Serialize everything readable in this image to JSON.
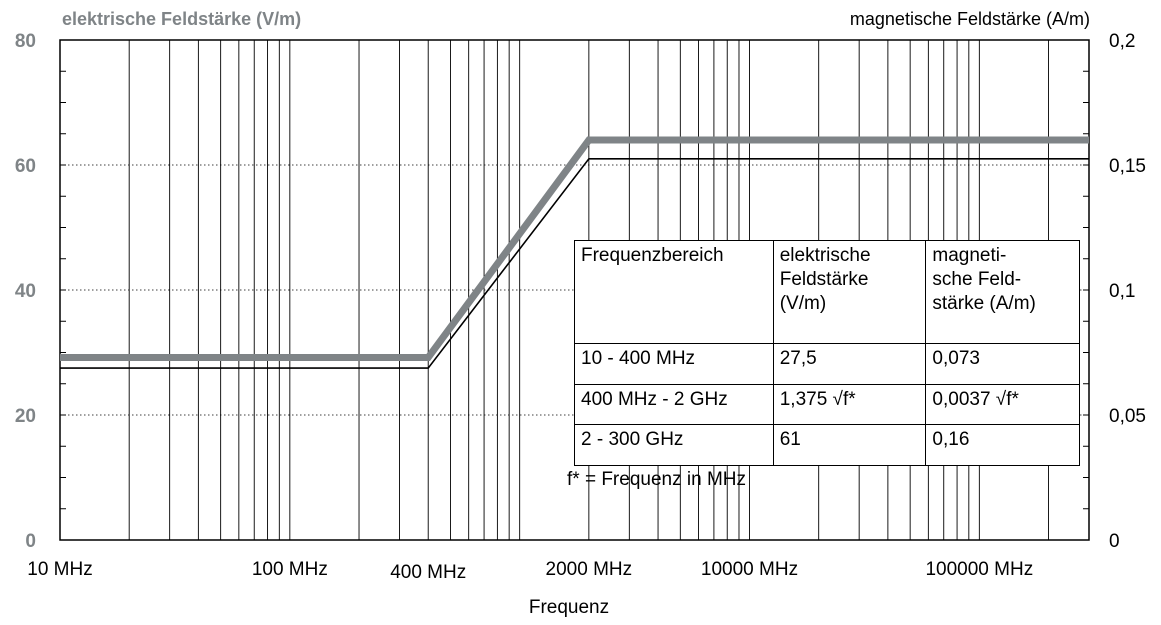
{
  "chart_data": {
    "type": "line",
    "title_left": "elektrische Feldstärke (V/m)",
    "title_right": "magnetische Feldstärke (A/m)",
    "xlabel": "Frequenz",
    "x_scale": "log",
    "x_unit": "MHz",
    "xlim": [
      10,
      300000
    ],
    "x_ticks": [
      {
        "value": 10,
        "label": "10 MHz"
      },
      {
        "value": 100,
        "label": "100 MHz"
      },
      {
        "value": 400,
        "label": "400 MHz"
      },
      {
        "value": 2000,
        "label": "2000 MHz"
      },
      {
        "value": 10000,
        "label": "10000 MHz"
      },
      {
        "value": 100000,
        "label": "100000 MHz"
      }
    ],
    "y_left": {
      "label": "elektrische Feldstärke (V/m)",
      "lim": [
        0,
        80
      ],
      "ticks": [
        {
          "value": 0,
          "label": "0"
        },
        {
          "value": 20,
          "label": "20"
        },
        {
          "value": 40,
          "label": "40"
        },
        {
          "value": 60,
          "label": "60"
        },
        {
          "value": 80,
          "label": "80"
        }
      ]
    },
    "y_right": {
      "label": "magnetische Feldstärke (A/m)",
      "lim": [
        0,
        0.2
      ],
      "ticks": [
        {
          "value": 0,
          "label": "0"
        },
        {
          "value": 0.05,
          "label": "0,05"
        },
        {
          "value": 0.1,
          "label": "0,1"
        },
        {
          "value": 0.15,
          "label": "0,15"
        },
        {
          "value": 0.2,
          "label": "0,2"
        }
      ]
    },
    "grid": {
      "vertical": true,
      "horizontal_dotted": true
    },
    "series": [
      {
        "color": "#7f8487",
        "axis": "right",
        "points": [
          [
            10,
            0.073
          ],
          [
            400,
            0.073
          ],
          [
            2000,
            0.16
          ],
          [
            300000,
            0.16
          ]
        ]
      },
      {
        "color": "#000000",
        "axis": "left",
        "points": [
          [
            10,
            27.5
          ],
          [
            400,
            27.5
          ],
          [
            2000,
            61
          ],
          [
            300000,
            61
          ]
        ]
      }
    ]
  },
  "table": {
    "header": [
      "Frequenzbereich",
      "elektrische Feldstärke (V/m)",
      "magneti- sche Feld- stärke (A/m)"
    ],
    "header_lines": [
      [
        "Frequenzbereich"
      ],
      [
        "elektrische",
        "Feldstärke",
        "(V/m)"
      ],
      [
        "magneti-",
        "sche Feld-",
        "stärke (A/m)"
      ]
    ],
    "rows": [
      [
        "10 - 400 MHz",
        "27,5",
        "0,073"
      ],
      [
        "400 MHz - 2 GHz",
        "1,375 √f*",
        "0,0037 √f*"
      ],
      [
        "2 - 300 GHz",
        "61",
        "0,16"
      ]
    ],
    "footnote": "f* = Frequenz in MHz"
  }
}
